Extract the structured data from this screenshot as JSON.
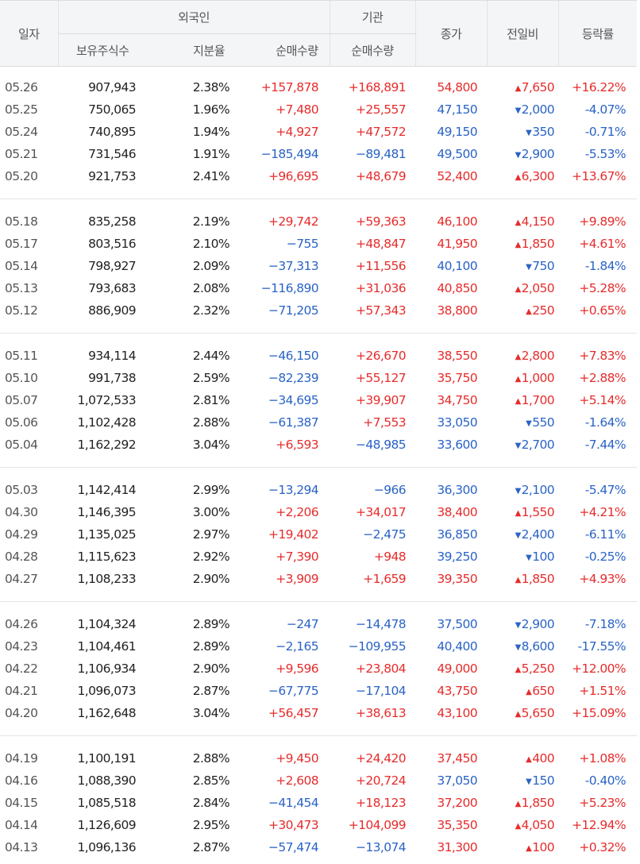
{
  "headers": {
    "date": "일자",
    "foreign": "외국인",
    "institution": "기관",
    "holdings": "보유주식수",
    "share_ratio": "지분율",
    "foreign_net": "순매수량",
    "inst_net": "순매수량",
    "close": "종가",
    "change": "전일비",
    "rate": "등락률"
  },
  "groups": [
    [
      {
        "date": "05.26",
        "holdings": "907,943",
        "ratio": "2.38%",
        "fnet": "+157,878",
        "inet": "+168,891",
        "close": "54,800",
        "change": "7,650",
        "dir": "up",
        "rate": "+16.22%"
      },
      {
        "date": "05.25",
        "holdings": "750,065",
        "ratio": "1.96%",
        "fnet": "+7,480",
        "inet": "+25,557",
        "close": "47,150",
        "change": "2,000",
        "dir": "down",
        "rate": "-4.07%"
      },
      {
        "date": "05.24",
        "holdings": "740,895",
        "ratio": "1.94%",
        "fnet": "+4,927",
        "inet": "+47,572",
        "close": "49,150",
        "change": "350",
        "dir": "down",
        "rate": "-0.71%"
      },
      {
        "date": "05.21",
        "holdings": "731,546",
        "ratio": "1.91%",
        "fnet": "−185,494",
        "inet": "−89,481",
        "close": "49,500",
        "change": "2,900",
        "dir": "down",
        "rate": "-5.53%"
      },
      {
        "date": "05.20",
        "holdings": "921,753",
        "ratio": "2.41%",
        "fnet": "+96,695",
        "inet": "+48,679",
        "close": "52,400",
        "change": "6,300",
        "dir": "up",
        "rate": "+13.67%"
      }
    ],
    [
      {
        "date": "05.18",
        "holdings": "835,258",
        "ratio": "2.19%",
        "fnet": "+29,742",
        "inet": "+59,363",
        "close": "46,100",
        "change": "4,150",
        "dir": "up",
        "rate": "+9.89%"
      },
      {
        "date": "05.17",
        "holdings": "803,516",
        "ratio": "2.10%",
        "fnet": "−755",
        "inet": "+48,847",
        "close": "41,950",
        "change": "1,850",
        "dir": "up",
        "rate": "+4.61%"
      },
      {
        "date": "05.14",
        "holdings": "798,927",
        "ratio": "2.09%",
        "fnet": "−37,313",
        "inet": "+11,556",
        "close": "40,100",
        "change": "750",
        "dir": "down",
        "rate": "-1.84%"
      },
      {
        "date": "05.13",
        "holdings": "793,683",
        "ratio": "2.08%",
        "fnet": "−116,890",
        "inet": "+31,036",
        "close": "40,850",
        "change": "2,050",
        "dir": "up",
        "rate": "+5.28%"
      },
      {
        "date": "05.12",
        "holdings": "886,909",
        "ratio": "2.32%",
        "fnet": "−71,205",
        "inet": "+57,343",
        "close": "38,800",
        "change": "250",
        "dir": "up",
        "rate": "+0.65%"
      }
    ],
    [
      {
        "date": "05.11",
        "holdings": "934,114",
        "ratio": "2.44%",
        "fnet": "−46,150",
        "inet": "+26,670",
        "close": "38,550",
        "change": "2,800",
        "dir": "up",
        "rate": "+7.83%"
      },
      {
        "date": "05.10",
        "holdings": "991,738",
        "ratio": "2.59%",
        "fnet": "−82,239",
        "inet": "+55,127",
        "close": "35,750",
        "change": "1,000",
        "dir": "up",
        "rate": "+2.88%"
      },
      {
        "date": "05.07",
        "holdings": "1,072,533",
        "ratio": "2.81%",
        "fnet": "−34,695",
        "inet": "+39,907",
        "close": "34,750",
        "change": "1,700",
        "dir": "up",
        "rate": "+5.14%"
      },
      {
        "date": "05.06",
        "holdings": "1,102,428",
        "ratio": "2.88%",
        "fnet": "−61,387",
        "inet": "+7,553",
        "close": "33,050",
        "change": "550",
        "dir": "down",
        "rate": "-1.64%"
      },
      {
        "date": "05.04",
        "holdings": "1,162,292",
        "ratio": "3.04%",
        "fnet": "+6,593",
        "inet": "−48,985",
        "close": "33,600",
        "change": "2,700",
        "dir": "down",
        "rate": "-7.44%"
      }
    ],
    [
      {
        "date": "05.03",
        "holdings": "1,142,414",
        "ratio": "2.99%",
        "fnet": "−13,294",
        "inet": "−966",
        "close": "36,300",
        "change": "2,100",
        "dir": "down",
        "rate": "-5.47%"
      },
      {
        "date": "04.30",
        "holdings": "1,146,395",
        "ratio": "3.00%",
        "fnet": "+2,206",
        "inet": "+34,017",
        "close": "38,400",
        "change": "1,550",
        "dir": "up",
        "rate": "+4.21%"
      },
      {
        "date": "04.29",
        "holdings": "1,135,025",
        "ratio": "2.97%",
        "fnet": "+19,402",
        "inet": "−2,475",
        "close": "36,850",
        "change": "2,400",
        "dir": "down",
        "rate": "-6.11%"
      },
      {
        "date": "04.28",
        "holdings": "1,115,623",
        "ratio": "2.92%",
        "fnet": "+7,390",
        "inet": "+948",
        "close": "39,250",
        "change": "100",
        "dir": "down",
        "rate": "-0.25%"
      },
      {
        "date": "04.27",
        "holdings": "1,108,233",
        "ratio": "2.90%",
        "fnet": "+3,909",
        "inet": "+1,659",
        "close": "39,350",
        "change": "1,850",
        "dir": "up",
        "rate": "+4.93%"
      }
    ],
    [
      {
        "date": "04.26",
        "holdings": "1,104,324",
        "ratio": "2.89%",
        "fnet": "−247",
        "inet": "−14,478",
        "close": "37,500",
        "change": "2,900",
        "dir": "down",
        "rate": "-7.18%"
      },
      {
        "date": "04.23",
        "holdings": "1,104,461",
        "ratio": "2.89%",
        "fnet": "−2,165",
        "inet": "−109,955",
        "close": "40,400",
        "change": "8,600",
        "dir": "down",
        "rate": "-17.55%"
      },
      {
        "date": "04.22",
        "holdings": "1,106,934",
        "ratio": "2.90%",
        "fnet": "+9,596",
        "inet": "+23,804",
        "close": "49,000",
        "change": "5,250",
        "dir": "up",
        "rate": "+12.00%"
      },
      {
        "date": "04.21",
        "holdings": "1,096,073",
        "ratio": "2.87%",
        "fnet": "−67,775",
        "inet": "−17,104",
        "close": "43,750",
        "change": "650",
        "dir": "up",
        "rate": "+1.51%"
      },
      {
        "date": "04.20",
        "holdings": "1,162,648",
        "ratio": "3.04%",
        "fnet": "+56,457",
        "inet": "+38,613",
        "close": "43,100",
        "change": "5,650",
        "dir": "up",
        "rate": "+15.09%"
      }
    ],
    [
      {
        "date": "04.19",
        "holdings": "1,100,191",
        "ratio": "2.88%",
        "fnet": "+9,450",
        "inet": "+24,420",
        "close": "37,450",
        "change": "400",
        "dir": "up",
        "rate": "+1.08%"
      },
      {
        "date": "04.16",
        "holdings": "1,088,390",
        "ratio": "2.85%",
        "fnet": "+2,608",
        "inet": "+20,724",
        "close": "37,050",
        "change": "150",
        "dir": "down",
        "rate": "-0.40%"
      },
      {
        "date": "04.15",
        "holdings": "1,085,518",
        "ratio": "2.84%",
        "fnet": "−41,454",
        "inet": "+18,123",
        "close": "37,200",
        "change": "1,850",
        "dir": "up",
        "rate": "+5.23%"
      },
      {
        "date": "04.14",
        "holdings": "1,126,609",
        "ratio": "2.95%",
        "fnet": "+30,473",
        "inet": "+104,099",
        "close": "35,350",
        "change": "4,050",
        "dir": "up",
        "rate": "+12.94%"
      },
      {
        "date": "04.13",
        "holdings": "1,096,136",
        "ratio": "2.87%",
        "fnet": "−57,474",
        "inet": "−13,074",
        "close": "31,300",
        "change": "100",
        "dir": "up",
        "rate": "+0.32%"
      }
    ]
  ],
  "colors": {
    "up": "#e62c2c",
    "down": "#2a63c6"
  },
  "icons": {
    "up": "triangle-up-icon",
    "down": "triangle-down-icon"
  }
}
